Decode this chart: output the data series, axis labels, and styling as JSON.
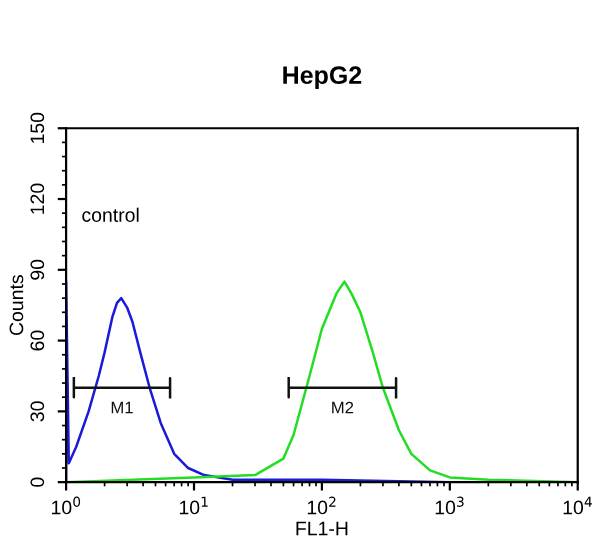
{
  "chart_data": {
    "type": "line",
    "title": "HepG2",
    "xlabel": "FL1-H",
    "ylabel": "Counts",
    "log": "x",
    "xlim": [
      1,
      10000
    ],
    "xticks": [
      {
        "value": 1,
        "label": "10$^{0}$"
      },
      {
        "value": 10,
        "label": "10$^{1}$"
      },
      {
        "value": 100,
        "label": "10$^{2}$"
      },
      {
        "value": 1000,
        "label": "10$^{3}$"
      },
      {
        "value": 10000,
        "label": "10$^{4}$"
      }
    ],
    "ylim": [
      0,
      150
    ],
    "yticks": [
      0,
      30,
      60,
      90,
      120,
      150
    ],
    "grid": false,
    "legend": false,
    "marker": "none",
    "annotations": [
      "control"
    ],
    "series": [
      {
        "color": "#1a1ad8",
        "x": [
          1.0,
          1.0,
          1.05,
          1.2,
          1.5,
          1.8,
          2.0,
          2.3,
          2.5,
          2.7,
          3.0,
          3.3,
          3.8,
          4.5,
          5.5,
          7,
          9,
          12,
          20,
          50,
          100,
          1000,
          10000
        ],
        "values": [
          0,
          85,
          8,
          15,
          30,
          45,
          55,
          70,
          76,
          78,
          74,
          68,
          55,
          40,
          25,
          12,
          6,
          3,
          1,
          1,
          1,
          0,
          0
        ]
      },
      {
        "color": "#22dd22",
        "x": [
          1,
          10,
          30,
          50,
          60,
          80,
          100,
          130,
          150,
          170,
          200,
          250,
          300,
          400,
          500,
          700,
          1000,
          2000,
          10000
        ],
        "values": [
          0,
          2,
          3,
          10,
          20,
          45,
          65,
          80,
          85,
          80,
          72,
          55,
          40,
          22,
          12,
          5,
          2,
          1,
          0
        ]
      },
      {
        "name": "M1",
        "color": "#111111",
        "x": [
          1.15,
          1.15,
          1.15,
          6.5,
          6.5,
          6.5
        ],
        "values": [
          44,
          36,
          40,
          40,
          44,
          36
        ]
      },
      {
        "name": "M2",
        "color": "#111111",
        "x": [
          55,
          55,
          55,
          380,
          380,
          380
        ],
        "values": [
          44,
          36,
          40,
          40,
          44,
          36
        ]
      }
    ]
  }
}
